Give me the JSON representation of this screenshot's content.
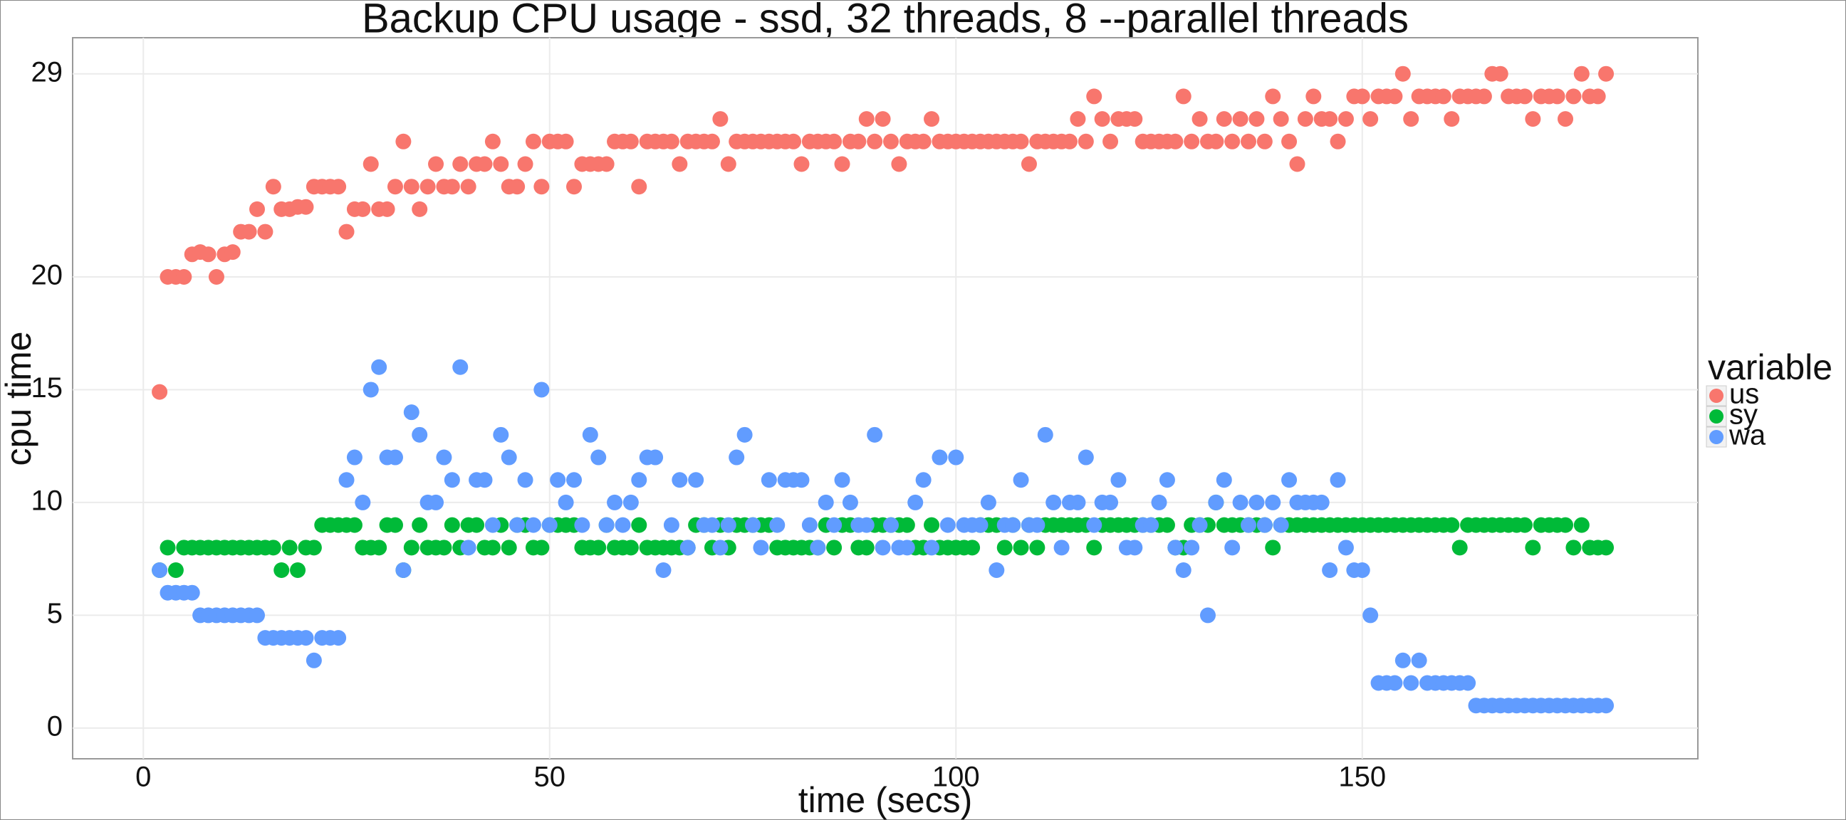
{
  "chart_data": {
    "type": "scatter",
    "title": "Backup CPU usage - ssd,  32  threads,  8  --parallel threads",
    "x_label": "time (secs)",
    "y_label": "cpu time",
    "legend_title": "variable",
    "legend_position": "right",
    "grid": true,
    "xlim": [
      -8.7,
      191.3
    ],
    "ylim": [
      -1.36,
      30.6
    ],
    "xticks": [
      0,
      50,
      100,
      150
    ],
    "yticks": [
      0,
      5,
      10,
      15,
      20,
      29
    ],
    "x": [
      2,
      3,
      4,
      5,
      6,
      7,
      8,
      9,
      10,
      11,
      12,
      13,
      14,
      15,
      16,
      17,
      18,
      19,
      20,
      21,
      22,
      23,
      24,
      25,
      26,
      27,
      28,
      29,
      30,
      31,
      32,
      33,
      34,
      35,
      36,
      37,
      38,
      39,
      40,
      41,
      42,
      43,
      44,
      45,
      46,
      47,
      48,
      49,
      50,
      51,
      52,
      53,
      54,
      55,
      56,
      57,
      58,
      59,
      60,
      61,
      62,
      63,
      64,
      65,
      66,
      67,
      68,
      69,
      70,
      71,
      72,
      73,
      74,
      75,
      76,
      77,
      78,
      79,
      80,
      81,
      82,
      83,
      84,
      85,
      86,
      87,
      88,
      89,
      90,
      91,
      92,
      93,
      94,
      95,
      96,
      97,
      98,
      99,
      100,
      101,
      102,
      103,
      104,
      105,
      106,
      107,
      108,
      109,
      110,
      111,
      112,
      113,
      114,
      115,
      116,
      117,
      118,
      119,
      120,
      121,
      122,
      123,
      124,
      125,
      126,
      127,
      128,
      129,
      130,
      131,
      132,
      133,
      134,
      135,
      136,
      137,
      138,
      139,
      140,
      141,
      142,
      143,
      144,
      145,
      146,
      147,
      148,
      149,
      150,
      151,
      152,
      153,
      154,
      155,
      156,
      157,
      158,
      159,
      160,
      161,
      162,
      163,
      164,
      165,
      166,
      167,
      168,
      169,
      170,
      171,
      172,
      173,
      174,
      175,
      176,
      177,
      178,
      179,
      180
    ],
    "series": [
      {
        "name": "us",
        "color": "#F8766D",
        "values": [
          14.9,
          20,
          20,
          20,
          21,
          21.1,
          21,
          20,
          21,
          21.1,
          22,
          22,
          23,
          22,
          24,
          23,
          23,
          23.1,
          23.1,
          24,
          24,
          24,
          24,
          22,
          23,
          23,
          25,
          23,
          23,
          24,
          26,
          24,
          23,
          24,
          25,
          24,
          24,
          25,
          24,
          25,
          25,
          26,
          25,
          24,
          24,
          25,
          26,
          24,
          26,
          26,
          26,
          24,
          25,
          25,
          25,
          25,
          26,
          26,
          26,
          24,
          26,
          26,
          26,
          26,
          25,
          26,
          26,
          26,
          26,
          27,
          25,
          26,
          26,
          26,
          26,
          26,
          26,
          26,
          26,
          25,
          26,
          26,
          26,
          26,
          25,
          26,
          26,
          27,
          26,
          27,
          26,
          25,
          26,
          26,
          26,
          27,
          26,
          26,
          26,
          26,
          26,
          26,
          26,
          26,
          26,
          26,
          26,
          25,
          26,
          26,
          26,
          26,
          26,
          27,
          26,
          28,
          27,
          26,
          27,
          27,
          27,
          26,
          26,
          26,
          26,
          26,
          28,
          26,
          27,
          26,
          26,
          27,
          26,
          27,
          26,
          27,
          26,
          28,
          27,
          26,
          25,
          27,
          28,
          27,
          27,
          26,
          27,
          28,
          28,
          27,
          28,
          28,
          28,
          29,
          27,
          28,
          28,
          28,
          28,
          27,
          28,
          28,
          28,
          28,
          29,
          29,
          28,
          28,
          28,
          27,
          28,
          28,
          28,
          27,
          28,
          29,
          28,
          28,
          29
        ]
      },
      {
        "name": "sy",
        "color": "#00BA38",
        "values": [
          7,
          8,
          7,
          8,
          8,
          8,
          8,
          8,
          8,
          8,
          8,
          8,
          8,
          8,
          8,
          7,
          8,
          7,
          8,
          8,
          9,
          9,
          9,
          9,
          9,
          8,
          8,
          8,
          9,
          9,
          7,
          8,
          9,
          8,
          8,
          8,
          9,
          8,
          9,
          9,
          8,
          8,
          9,
          8,
          9,
          9,
          8,
          8,
          9,
          9,
          9,
          9,
          8,
          8,
          8,
          9,
          8,
          8,
          8,
          9,
          8,
          8,
          8,
          8,
          8,
          8,
          9,
          9,
          8,
          9,
          8,
          9,
          9,
          9,
          9,
          9,
          8,
          8,
          8,
          8,
          8,
          8,
          9,
          8,
          9,
          9,
          8,
          8,
          9,
          9,
          9,
          9,
          9,
          8,
          8,
          9,
          8,
          8,
          8,
          8,
          8,
          9,
          9,
          9,
          8,
          9,
          8,
          9,
          8,
          9,
          9,
          9,
          9,
          9,
          9,
          8,
          9,
          9,
          9,
          9,
          9,
          9,
          9,
          9,
          9,
          8,
          8,
          9,
          9,
          9,
          10,
          9,
          9,
          9,
          9,
          9,
          9,
          8,
          9,
          9,
          9,
          9,
          9,
          9,
          9,
          9,
          9,
          9,
          9,
          9,
          9,
          9,
          9,
          9,
          9,
          9,
          9,
          9,
          9,
          9,
          8,
          9,
          9,
          9,
          9,
          9,
          9,
          9,
          9,
          8,
          9,
          9,
          9,
          9,
          8,
          9,
          8,
          8,
          8
        ]
      },
      {
        "name": "wa",
        "color": "#619CFF",
        "values": [
          7,
          6,
          6,
          6,
          6,
          5,
          5,
          5,
          5,
          5,
          5,
          5,
          5,
          4,
          4,
          4,
          4,
          4,
          4,
          3,
          4,
          4,
          4,
          11,
          12,
          10,
          15,
          16,
          12,
          12,
          7,
          14,
          13,
          10,
          10,
          12,
          11,
          16,
          8,
          11,
          11,
          9,
          13,
          12,
          9,
          11,
          9,
          15,
          9,
          11,
          10,
          11,
          9,
          13,
          12,
          9,
          10,
          9,
          10,
          11,
          12,
          12,
          7,
          9,
          11,
          8,
          11,
          9,
          9,
          8,
          9,
          12,
          13,
          9,
          8,
          11,
          9,
          11,
          11,
          11,
          9,
          8,
          10,
          9,
          11,
          10,
          9,
          9,
          13,
          8,
          9,
          8,
          8,
          10,
          11,
          8,
          12,
          9,
          12,
          9,
          9,
          9,
          10,
          7,
          9,
          9,
          11,
          9,
          9,
          13,
          10,
          8,
          10,
          10,
          12,
          9,
          10,
          10,
          11,
          8,
          8,
          9,
          9,
          10,
          11,
          8,
          7,
          8,
          9,
          5,
          10,
          11,
          8,
          10,
          9,
          10,
          9,
          10,
          9,
          11,
          10,
          10,
          10,
          10,
          7,
          11,
          8,
          7,
          7,
          5,
          2,
          2,
          2,
          3,
          2,
          3,
          2,
          2,
          2,
          2,
          2,
          2,
          1,
          1,
          1,
          1,
          1,
          1,
          1,
          1,
          1,
          1,
          1,
          1,
          1,
          1,
          1,
          1,
          1
        ]
      }
    ]
  }
}
